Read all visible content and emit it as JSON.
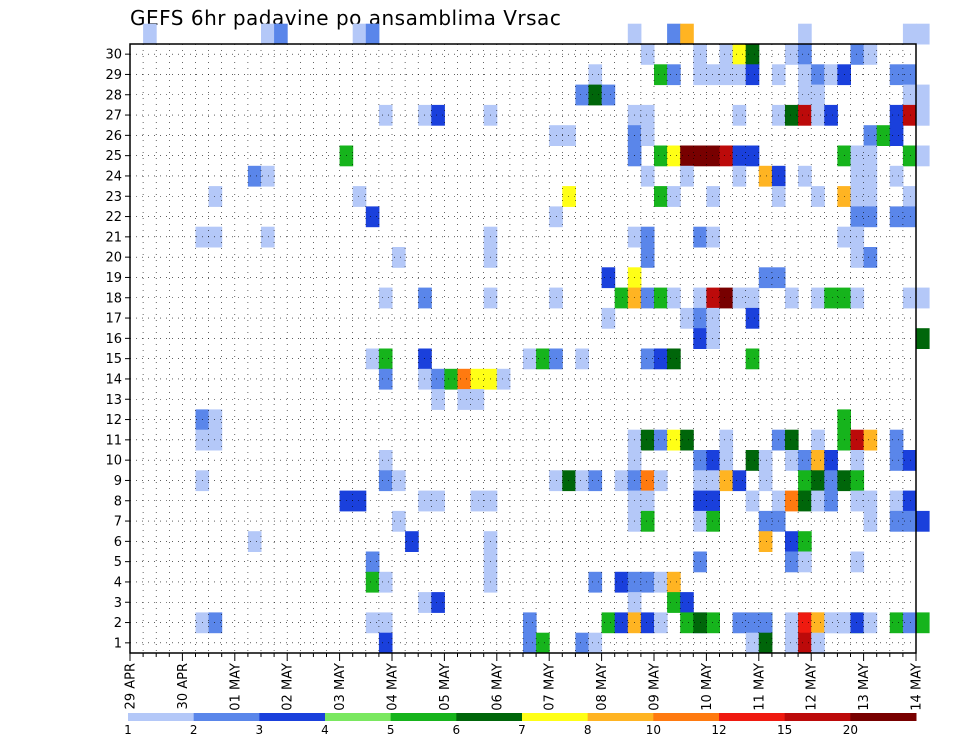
{
  "chart_data": {
    "type": "heatmap",
    "title": "GEFS 6hr padavine po ansamblima Vrsac",
    "x_tick_labels": [
      "29 APR",
      "30 APR",
      "01 MAY",
      "02 MAY",
      "03 MAY",
      "04 MAY",
      "05 MAY",
      "06 MAY",
      "07 MAY",
      "08 MAY",
      "09 MAY",
      "10 MAY",
      "11 MAY",
      "12 MAY",
      "13 MAY",
      "14 MAY"
    ],
    "y_tick_labels": [
      "1",
      "2",
      "3",
      "4",
      "5",
      "6",
      "7",
      "8",
      "9",
      "10",
      "11",
      "12",
      "13",
      "14",
      "15",
      "16",
      "17",
      "18",
      "19",
      "20",
      "21",
      "22",
      "23",
      "24",
      "25",
      "26",
      "27",
      "28",
      "29",
      "30"
    ],
    "x_steps_per_day": 4,
    "ylim": [
      0,
      30
    ],
    "grid": true,
    "legend": {
      "placement": "bottom",
      "tick_labels": [
        "1",
        "2",
        "3",
        "4",
        "5",
        "6",
        "7",
        "8",
        "10",
        "12",
        "15",
        "20"
      ],
      "colors": [
        "#b4c8f8",
        "#5a86ea",
        "#1a40dc",
        "#7ae860",
        "#16b41c",
        "#00660a",
        "#ffff16",
        "#ffb422",
        "#ff7a10",
        "#ef1a10",
        "#bc0a0a",
        "#780000"
      ]
    },
    "cells": [
      [
        30,
        1,
        1
      ],
      [
        30,
        10,
        1
      ],
      [
        30,
        11,
        2
      ],
      [
        30,
        17,
        1
      ],
      [
        30,
        18,
        2
      ],
      [
        30,
        38,
        1
      ],
      [
        30,
        41,
        2
      ],
      [
        30,
        42,
        8
      ],
      [
        30,
        51,
        1
      ],
      [
        30,
        59,
        1
      ],
      [
        30,
        60,
        1
      ],
      [
        29,
        39,
        1
      ],
      [
        29,
        43,
        1
      ],
      [
        29,
        45,
        1
      ],
      [
        29,
        46,
        7
      ],
      [
        29,
        47,
        6
      ],
      [
        29,
        50,
        1
      ],
      [
        29,
        51,
        2
      ],
      [
        29,
        55,
        2
      ],
      [
        29,
        56,
        1
      ],
      [
        28,
        35,
        1
      ],
      [
        28,
        40,
        5
      ],
      [
        28,
        41,
        2
      ],
      [
        28,
        43,
        1
      ],
      [
        28,
        44,
        1
      ],
      [
        28,
        45,
        1
      ],
      [
        28,
        46,
        1
      ],
      [
        28,
        47,
        3
      ],
      [
        28,
        49,
        1
      ],
      [
        28,
        51,
        1
      ],
      [
        28,
        52,
        2
      ],
      [
        28,
        53,
        1
      ],
      [
        28,
        54,
        3
      ],
      [
        28,
        58,
        2
      ],
      [
        28,
        59,
        2
      ],
      [
        27,
        34,
        2
      ],
      [
        27,
        35,
        6
      ],
      [
        27,
        36,
        2
      ],
      [
        27,
        51,
        1
      ],
      [
        27,
        52,
        1
      ],
      [
        27,
        59,
        1
      ],
      [
        27,
        60,
        1
      ],
      [
        26,
        19,
        1
      ],
      [
        26,
        22,
        1
      ],
      [
        26,
        23,
        3
      ],
      [
        26,
        27,
        1
      ],
      [
        26,
        38,
        1
      ],
      [
        26,
        39,
        1
      ],
      [
        26,
        46,
        1
      ],
      [
        26,
        49,
        1
      ],
      [
        26,
        50,
        6
      ],
      [
        26,
        51,
        11
      ],
      [
        26,
        52,
        1
      ],
      [
        26,
        53,
        3
      ],
      [
        26,
        58,
        3
      ],
      [
        26,
        59,
        11
      ],
      [
        26,
        60,
        1
      ],
      [
        25,
        32,
        1
      ],
      [
        25,
        33,
        1
      ],
      [
        25,
        38,
        2
      ],
      [
        25,
        39,
        1
      ],
      [
        25,
        56,
        2
      ],
      [
        25,
        57,
        5
      ],
      [
        25,
        58,
        3
      ],
      [
        24,
        16,
        5
      ],
      [
        24,
        38,
        2
      ],
      [
        24,
        40,
        5
      ],
      [
        24,
        41,
        7
      ],
      [
        24,
        42,
        12
      ],
      [
        24,
        43,
        12
      ],
      [
        24,
        44,
        12
      ],
      [
        24,
        45,
        11
      ],
      [
        24,
        46,
        3
      ],
      [
        24,
        47,
        3
      ],
      [
        24,
        54,
        5
      ],
      [
        24,
        55,
        1
      ],
      [
        24,
        56,
        1
      ],
      [
        24,
        59,
        5
      ],
      [
        24,
        60,
        1
      ],
      [
        23,
        9,
        2
      ],
      [
        23,
        10,
        1
      ],
      [
        23,
        39,
        1
      ],
      [
        23,
        42,
        1
      ],
      [
        23,
        46,
        1
      ],
      [
        23,
        48,
        8
      ],
      [
        23,
        49,
        3
      ],
      [
        23,
        51,
        1
      ],
      [
        23,
        55,
        1
      ],
      [
        23,
        56,
        1
      ],
      [
        23,
        58,
        1
      ],
      [
        22,
        6,
        1
      ],
      [
        22,
        17,
        1
      ],
      [
        22,
        33,
        7
      ],
      [
        22,
        40,
        5
      ],
      [
        22,
        41,
        1
      ],
      [
        22,
        44,
        1
      ],
      [
        22,
        49,
        1
      ],
      [
        22,
        52,
        1
      ],
      [
        22,
        54,
        8
      ],
      [
        22,
        55,
        1
      ],
      [
        22,
        56,
        1
      ],
      [
        22,
        59,
        1
      ],
      [
        21,
        18,
        3
      ],
      [
        21,
        32,
        1
      ],
      [
        21,
        55,
        2
      ],
      [
        21,
        56,
        2
      ],
      [
        21,
        58,
        2
      ],
      [
        21,
        59,
        2
      ],
      [
        20,
        5,
        1
      ],
      [
        20,
        6,
        1
      ],
      [
        20,
        10,
        1
      ],
      [
        20,
        27,
        1
      ],
      [
        20,
        38,
        1
      ],
      [
        20,
        39,
        2
      ],
      [
        20,
        43,
        2
      ],
      [
        20,
        44,
        1
      ],
      [
        20,
        54,
        1
      ],
      [
        20,
        55,
        1
      ],
      [
        19,
        20,
        1
      ],
      [
        19,
        27,
        1
      ],
      [
        19,
        39,
        2
      ],
      [
        19,
        55,
        1
      ],
      [
        19,
        56,
        2
      ],
      [
        18,
        36,
        3
      ],
      [
        18,
        38,
        7
      ],
      [
        18,
        48,
        2
      ],
      [
        18,
        49,
        2
      ],
      [
        17,
        19,
        1
      ],
      [
        17,
        22,
        2
      ],
      [
        17,
        27,
        1
      ],
      [
        17,
        32,
        1
      ],
      [
        17,
        37,
        5
      ],
      [
        17,
        38,
        8
      ],
      [
        17,
        39,
        2
      ],
      [
        17,
        40,
        5
      ],
      [
        17,
        41,
        1
      ],
      [
        17,
        43,
        1
      ],
      [
        17,
        44,
        11
      ],
      [
        17,
        45,
        12
      ],
      [
        17,
        46,
        1
      ],
      [
        17,
        47,
        1
      ],
      [
        17,
        50,
        1
      ],
      [
        17,
        52,
        1
      ],
      [
        17,
        53,
        5
      ],
      [
        17,
        54,
        5
      ],
      [
        17,
        55,
        1
      ],
      [
        17,
        59,
        1
      ],
      [
        17,
        60,
        1
      ],
      [
        16,
        36,
        1
      ],
      [
        16,
        42,
        1
      ],
      [
        16,
        43,
        2
      ],
      [
        16,
        44,
        1
      ],
      [
        16,
        47,
        3
      ],
      [
        15,
        43,
        3
      ],
      [
        15,
        44,
        1
      ],
      [
        15,
        60,
        6
      ],
      [
        14,
        18,
        1
      ],
      [
        14,
        19,
        5
      ],
      [
        14,
        22,
        3
      ],
      [
        14,
        30,
        1
      ],
      [
        14,
        31,
        5
      ],
      [
        14,
        32,
        2
      ],
      [
        14,
        34,
        1
      ],
      [
        14,
        39,
        2
      ],
      [
        14,
        40,
        3
      ],
      [
        14,
        41,
        6
      ],
      [
        14,
        47,
        5
      ],
      [
        13,
        19,
        2
      ],
      [
        13,
        22,
        1
      ],
      [
        13,
        23,
        2
      ],
      [
        13,
        24,
        5
      ],
      [
        13,
        25,
        9
      ],
      [
        13,
        26,
        7
      ],
      [
        13,
        27,
        7
      ],
      [
        13,
        28,
        1
      ],
      [
        12,
        23,
        1
      ],
      [
        12,
        25,
        1
      ],
      [
        12,
        26,
        1
      ],
      [
        11,
        5,
        2
      ],
      [
        11,
        6,
        1
      ],
      [
        11,
        54,
        5
      ],
      [
        10,
        5,
        1
      ],
      [
        10,
        6,
        1
      ],
      [
        10,
        38,
        1
      ],
      [
        10,
        39,
        6
      ],
      [
        10,
        40,
        2
      ],
      [
        10,
        41,
        7
      ],
      [
        10,
        42,
        6
      ],
      [
        10,
        45,
        1
      ],
      [
        10,
        49,
        2
      ],
      [
        10,
        50,
        6
      ],
      [
        10,
        52,
        1
      ],
      [
        10,
        54,
        5
      ],
      [
        10,
        55,
        11
      ],
      [
        10,
        56,
        8
      ],
      [
        10,
        58,
        2
      ],
      [
        9,
        19,
        1
      ],
      [
        9,
        38,
        1
      ],
      [
        9,
        43,
        2
      ],
      [
        9,
        44,
        3
      ],
      [
        9,
        45,
        1
      ],
      [
        9,
        47,
        6
      ],
      [
        9,
        48,
        1
      ],
      [
        9,
        50,
        1
      ],
      [
        9,
        51,
        2
      ],
      [
        9,
        52,
        8
      ],
      [
        9,
        53,
        3
      ],
      [
        9,
        55,
        1
      ],
      [
        9,
        58,
        2
      ],
      [
        9,
        59,
        3
      ],
      [
        8,
        5,
        1
      ],
      [
        8,
        19,
        2
      ],
      [
        8,
        20,
        1
      ],
      [
        8,
        32,
        1
      ],
      [
        8,
        33,
        6
      ],
      [
        8,
        34,
        1
      ],
      [
        8,
        35,
        2
      ],
      [
        8,
        37,
        1
      ],
      [
        8,
        38,
        2
      ],
      [
        8,
        39,
        9
      ],
      [
        8,
        40,
        1
      ],
      [
        8,
        43,
        1
      ],
      [
        8,
        44,
        1
      ],
      [
        8,
        45,
        8
      ],
      [
        8,
        46,
        3
      ],
      [
        8,
        48,
        1
      ],
      [
        8,
        51,
        5
      ],
      [
        8,
        52,
        6
      ],
      [
        8,
        53,
        2
      ],
      [
        8,
        54,
        6
      ],
      [
        8,
        55,
        5
      ],
      [
        7,
        16,
        3
      ],
      [
        7,
        17,
        3
      ],
      [
        7,
        22,
        1
      ],
      [
        7,
        23,
        1
      ],
      [
        7,
        26,
        1
      ],
      [
        7,
        27,
        1
      ],
      [
        7,
        38,
        1
      ],
      [
        7,
        39,
        1
      ],
      [
        7,
        43,
        3
      ],
      [
        7,
        44,
        3
      ],
      [
        7,
        47,
        1
      ],
      [
        7,
        49,
        1
      ],
      [
        7,
        50,
        9
      ],
      [
        7,
        51,
        6
      ],
      [
        7,
        52,
        1
      ],
      [
        7,
        53,
        2
      ],
      [
        7,
        55,
        1
      ],
      [
        7,
        56,
        1
      ],
      [
        7,
        58,
        1
      ],
      [
        7,
        59,
        3
      ],
      [
        6,
        20,
        1
      ],
      [
        6,
        38,
        1
      ],
      [
        6,
        39,
        5
      ],
      [
        6,
        43,
        1
      ],
      [
        6,
        44,
        5
      ],
      [
        6,
        48,
        2
      ],
      [
        6,
        49,
        2
      ],
      [
        6,
        56,
        1
      ],
      [
        6,
        58,
        2
      ],
      [
        6,
        59,
        2
      ],
      [
        6,
        60,
        3
      ],
      [
        5,
        9,
        1
      ],
      [
        5,
        21,
        3
      ],
      [
        5,
        27,
        1
      ],
      [
        5,
        48,
        8
      ],
      [
        5,
        50,
        3
      ],
      [
        5,
        51,
        5
      ],
      [
        4,
        18,
        2
      ],
      [
        4,
        27,
        1
      ],
      [
        4,
        43,
        2
      ],
      [
        4,
        50,
        2
      ],
      [
        4,
        51,
        1
      ],
      [
        4,
        55,
        1
      ],
      [
        3,
        18,
        5
      ],
      [
        3,
        19,
        1
      ],
      [
        3,
        27,
        1
      ],
      [
        3,
        35,
        2
      ],
      [
        3,
        37,
        3
      ],
      [
        3,
        38,
        2
      ],
      [
        3,
        39,
        2
      ],
      [
        3,
        40,
        1
      ],
      [
        3,
        41,
        8
      ],
      [
        2,
        22,
        1
      ],
      [
        2,
        23,
        3
      ],
      [
        2,
        38,
        1
      ],
      [
        2,
        41,
        5
      ],
      [
        2,
        42,
        3
      ],
      [
        1,
        30,
        2
      ],
      [
        1,
        43,
        2
      ],
      [
        1,
        44,
        5
      ],
      [
        1,
        46,
        1
      ],
      [
        1,
        47,
        8
      ],
      [
        1,
        48,
        5
      ],
      [
        1,
        50,
        1
      ],
      [
        1,
        51,
        5
      ],
      [
        1,
        52,
        8
      ],
      [
        1,
        53,
        1
      ],
      [
        1,
        54,
        2
      ],
      [
        1,
        55,
        5
      ],
      [
        1,
        58,
        5
      ],
      [
        1,
        59,
        2
      ],
      [
        1,
        5,
        1
      ],
      [
        1,
        6,
        2
      ],
      [
        1,
        18,
        1
      ],
      [
        1,
        19,
        1
      ],
      [
        1,
        36,
        5
      ],
      [
        1,
        37,
        3
      ],
      [
        1,
        38,
        8
      ],
      [
        1,
        39,
        3
      ],
      [
        1,
        40,
        1
      ],
      [
        1,
        42,
        5
      ],
      [
        1,
        43,
        6
      ],
      [
        1,
        46,
        2
      ],
      [
        1,
        47,
        2
      ],
      [
        1,
        48,
        2
      ],
      [
        1,
        51,
        10
      ],
      [
        1,
        52,
        8
      ],
      [
        1,
        53,
        1
      ],
      [
        1,
        54,
        1
      ],
      [
        1,
        55,
        3
      ],
      [
        1,
        56,
        1
      ],
      [
        1,
        60,
        5
      ],
      [
        0,
        19,
        3
      ],
      [
        0,
        30,
        2
      ],
      [
        0,
        31,
        5
      ],
      [
        0,
        34,
        2
      ],
      [
        0,
        35,
        1
      ],
      [
        0,
        47,
        1
      ],
      [
        0,
        48,
        6
      ],
      [
        0,
        50,
        1
      ],
      [
        0,
        51,
        11
      ],
      [
        0,
        52,
        1
      ]
    ]
  }
}
